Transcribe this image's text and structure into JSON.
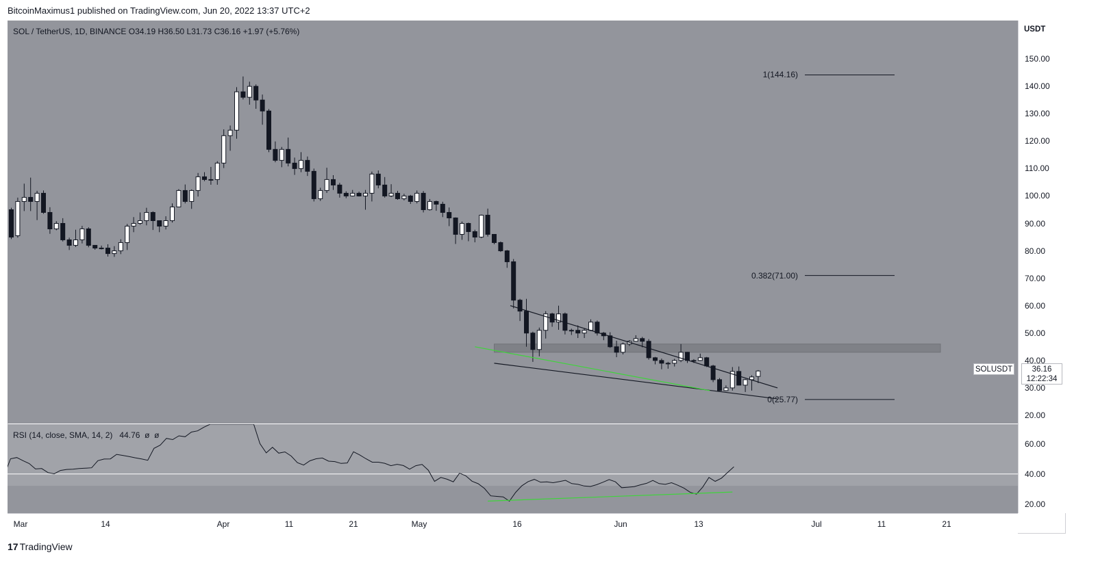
{
  "header": {
    "published_text": "BitcoinMaximus1 published on TradingView.com, Jun 20, 2022 13:37 UTC+2"
  },
  "legend": {
    "symbol": "SOL / TetherUS, 1D, BINANCE",
    "o_label": "O",
    "o_value": "34.19",
    "h_label": "H",
    "h_value": "36.50",
    "l_label": "L",
    "l_value": "31.73",
    "c_label": "C",
    "c_value": "36.16",
    "change": "+1.97 (+5.76%)"
  },
  "rsi_legend": {
    "label": "RSI (14, close, SMA, 14, 2)",
    "value": "44.76",
    "extra1": "ø",
    "extra2": "ø"
  },
  "price_tag": {
    "symbol": "SOLUSDT",
    "price": "36.16",
    "countdown": "12:22:34"
  },
  "fib_levels": [
    {
      "label": "1(144.16)",
      "price": 144.16
    },
    {
      "label": "0.382(71.00)",
      "price": 71.0
    },
    {
      "label": "0(25.77)",
      "price": 25.77
    }
  ],
  "brand": {
    "name": "TradingView",
    "mark": "17"
  },
  "chart_data": [
    {
      "type": "candlestick",
      "title": "SOL / TetherUS, 1D, BINANCE",
      "y_unit": "USDT",
      "ylim": [
        17,
        164
      ],
      "y_ticks": [
        "150.00",
        "140.00",
        "130.00",
        "120.00",
        "110.00",
        "100.00",
        "90.00",
        "80.00",
        "70.00",
        "60.00",
        "50.00",
        "40.00",
        "30.00",
        "20.00"
      ],
      "x_ticks": [
        "Mar",
        "14",
        "Apr",
        "11",
        "21",
        "May",
        "16",
        "Jun",
        "13",
        "Jul",
        "11",
        "21"
      ],
      "candles": [
        [
          95.0,
          85.0,
          95.7,
          84.3
        ],
        [
          85.5,
          98.0,
          99.4,
          84.8
        ],
        [
          98.0,
          99.5,
          104.5,
          94.5
        ],
        [
          99.5,
          98.0,
          106.7,
          94.5
        ],
        [
          98.0,
          101.0,
          101.9,
          91.2
        ],
        [
          101.0,
          94.0,
          102.0,
          93.5
        ],
        [
          94.0,
          88.0,
          95.9,
          86.2
        ],
        [
          88.0,
          90.0,
          90.8,
          87.5
        ],
        [
          90.0,
          84.0,
          91.9,
          83.4
        ],
        [
          84.0,
          82.0,
          84.8,
          80.3
        ],
        [
          82.0,
          84.0,
          87.7,
          81.4
        ],
        [
          84.0,
          88.0,
          89.1,
          82.7
        ],
        [
          88.0,
          82.0,
          88.6,
          81.3
        ],
        [
          82.0,
          81.0,
          82.1,
          80.4
        ],
        [
          81.0,
          81.0,
          81.9,
          80.5
        ],
        [
          81.0,
          79.0,
          82.4,
          77.9
        ],
        [
          79.0,
          80.0,
          81.7,
          77.8
        ],
        [
          80.0,
          83.0,
          84.2,
          78.8
        ],
        [
          83.0,
          89.0,
          89.8,
          80.3
        ],
        [
          89.0,
          90.0,
          92.3,
          86.8
        ],
        [
          90.0,
          91.0,
          94.0,
          89.5
        ],
        [
          91.0,
          94.0,
          95.7,
          89.3
        ],
        [
          94.0,
          91.0,
          94.4,
          87.6
        ],
        [
          91.0,
          89.0,
          91.1,
          86.8
        ],
        [
          89.0,
          91.0,
          92.6,
          87.8
        ],
        [
          91.0,
          96.0,
          97.3,
          90.3
        ],
        [
          96.0,
          102.0,
          102.5,
          95.9
        ],
        [
          102.0,
          98.0,
          104.2,
          97.3
        ],
        [
          98.0,
          102.0,
          102.4,
          95.3
        ],
        [
          102.0,
          107.0,
          108.4,
          99.8
        ],
        [
          107.0,
          106.0,
          108.7,
          105.4
        ],
        [
          106.0,
          106.0,
          110.6,
          104.1
        ],
        [
          106.0,
          112.0,
          112.7,
          104.1
        ],
        [
          112.0,
          122.0,
          124.3,
          110.2
        ],
        [
          122.0,
          124.0,
          125.7,
          116.5
        ],
        [
          124.0,
          138.0,
          139.7,
          120.9
        ],
        [
          138.0,
          136.0,
          143.6,
          135.2
        ],
        [
          136.0,
          140.0,
          141.7,
          133.3
        ],
        [
          140.0,
          135.0,
          140.7,
          131.8
        ],
        [
          135.0,
          131.0,
          137.0,
          126.0
        ],
        [
          131.0,
          117.0,
          131.7,
          116.0
        ],
        [
          117.0,
          113.0,
          119.9,
          112.3
        ],
        [
          113.0,
          117.0,
          117.9,
          110.5
        ],
        [
          117.0,
          112.0,
          121.3,
          110.8
        ],
        [
          112.0,
          110.0,
          114.0,
          107.7
        ],
        [
          110.0,
          113.0,
          116.0,
          108.7
        ],
        [
          113.0,
          109.0,
          114.4,
          107.3
        ],
        [
          109.0,
          99.0,
          110.0,
          98.0
        ],
        [
          99.0,
          102.0,
          103.0,
          98.2
        ],
        [
          102.0,
          106.0,
          110.3,
          101.1
        ],
        [
          106.0,
          104.0,
          107.6,
          102.2
        ],
        [
          104.0,
          101.0,
          104.8,
          99.4
        ],
        [
          101.0,
          100.0,
          101.7,
          99.2
        ],
        [
          100.0,
          101.0,
          102.2,
          99.8
        ],
        [
          101.0,
          100.0,
          101.6,
          99.8
        ],
        [
          100.0,
          101.0,
          102.2,
          95.0
        ],
        [
          101.0,
          108.0,
          108.9,
          98.0
        ],
        [
          108.0,
          104.0,
          109.3,
          102.8
        ],
        [
          104.0,
          100.0,
          106.9,
          99.4
        ],
        [
          100.0,
          101.0,
          104.3,
          99.6
        ],
        [
          101.0,
          99.0,
          101.9,
          98.6
        ],
        [
          99.0,
          100.0,
          100.8,
          98.4
        ],
        [
          100.0,
          98.0,
          100.4,
          97.1
        ],
        [
          98.0,
          101.0,
          102.0,
          97.3
        ],
        [
          101.0,
          95.0,
          101.8,
          94.0
        ],
        [
          95.0,
          98.0,
          98.9,
          94.7
        ],
        [
          98.0,
          97.0,
          98.3,
          94.6
        ],
        [
          97.0,
          94.0,
          97.9,
          92.3
        ],
        [
          94.0,
          92.0,
          95.8,
          89.0
        ],
        [
          92.0,
          86.0,
          92.2,
          82.5
        ],
        [
          86.0,
          90.0,
          90.7,
          84.0
        ],
        [
          90.0,
          87.0,
          90.3,
          83.5
        ],
        [
          87.0,
          85.0,
          87.7,
          83.1
        ],
        [
          85.0,
          93.0,
          93.2,
          84.6
        ],
        [
          93.0,
          86.0,
          95.4,
          85.2
        ],
        [
          86.0,
          83.0,
          86.1,
          82.4
        ],
        [
          83.0,
          80.0,
          83.4,
          79.6
        ],
        [
          80.0,
          76.0,
          80.3,
          73.8
        ],
        [
          76.0,
          62.0,
          77.0,
          59.0
        ],
        [
          62.0,
          58.0,
          62.5,
          54.4
        ],
        [
          58.0,
          50.0,
          62.5,
          45.0
        ],
        [
          50.0,
          44.0,
          50.5,
          39.5
        ],
        [
          44.0,
          51.0,
          52.0,
          41.5
        ],
        [
          51.0,
          57.0,
          58.0,
          48.0
        ],
        [
          57.0,
          54.0,
          57.4,
          52.3
        ],
        [
          54.0,
          57.0,
          60.0,
          51.2
        ],
        [
          57.0,
          51.0,
          57.5,
          49.5
        ],
        [
          51.0,
          51.0,
          51.6,
          49.3
        ],
        [
          51.0,
          50.0,
          52.8,
          48.2
        ],
        [
          50.0,
          51.0,
          51.8,
          48.2
        ],
        [
          51.0,
          54.0,
          55.0,
          50.7
        ],
        [
          54.0,
          50.0,
          54.6,
          49.1
        ],
        [
          50.0,
          49.0,
          50.4,
          47.4
        ],
        [
          49.0,
          45.0,
          50.3,
          44.6
        ],
        [
          45.0,
          43.0,
          47.2,
          41.2
        ],
        [
          43.0,
          46.0,
          46.5,
          42.2
        ],
        [
          46.0,
          47.0,
          47.4,
          45.3
        ],
        [
          47.0,
          48.0,
          49.2,
          46.9
        ],
        [
          48.0,
          47.0,
          48.6,
          44.8
        ],
        [
          47.0,
          41.0,
          47.8,
          40.3
        ],
        [
          41.0,
          40.0,
          41.3,
          38.6
        ],
        [
          40.0,
          39.0,
          40.7,
          36.8
        ],
        [
          39.0,
          39.0,
          39.5,
          37.0
        ],
        [
          39.0,
          40.0,
          40.6,
          37.8
        ],
        [
          40.0,
          43.0,
          46.0,
          39.4
        ],
        [
          43.0,
          40.0,
          43.1,
          39.1
        ],
        [
          40.0,
          40.0,
          40.5,
          39.1
        ],
        [
          40.0,
          41.0,
          42.5,
          39.8
        ],
        [
          41.0,
          38.0,
          41.3,
          37.6
        ],
        [
          38.0,
          33.0,
          38.4,
          32.1
        ],
        [
          33.0,
          29.0,
          33.6,
          28.9
        ],
        [
          29.0,
          30.0,
          30.9,
          28.8
        ],
        [
          30.0,
          36.0,
          37.6,
          29.0
        ],
        [
          36.0,
          31.0,
          37.8,
          30.9
        ],
        [
          31.0,
          33.0,
          33.3,
          28.5
        ],
        [
          33.0,
          34.0,
          34.6,
          29.0
        ],
        [
          34.19,
          36.16,
          36.5,
          31.73
        ]
      ],
      "rsi": {
        "label": "RSI (14, close, SMA, 14, 2)",
        "ylim": [
          14,
          73
        ],
        "y_ticks": [
          "60.00",
          "40.00",
          "20.00"
        ],
        "values": [
          39.3,
          50.1,
          50.9,
          48.8,
          46.9,
          43.3,
          43.6,
          40.9,
          40.1,
          42.3,
          43.0,
          43.2,
          43.6,
          43.8,
          44.1,
          48.8,
          49.9,
          50.0,
          53.0,
          52.3,
          51.6,
          50.7,
          50.0,
          49.1,
          57.0,
          59.1,
          63.6,
          62.8,
          65.3,
          64.7,
          67.8,
          68.6,
          71.0,
          73.0,
          73.0,
          73.0,
          73.0,
          73.0,
          73.0,
          73.0,
          73.0,
          60.1,
          54.0,
          57.7,
          53.8,
          54.6,
          51.9,
          47.5,
          45.9,
          48.7,
          50.1,
          50.6,
          48.5,
          48.2,
          47.0,
          47.3,
          54.7,
          52.6,
          50.1,
          47.8,
          47.8,
          47.1,
          45.5,
          46.4,
          45.6,
          43.2,
          45.5,
          46.3,
          42.5,
          35.1,
          37.7,
          36.5,
          34.8,
          40.5,
          38.8,
          35.2,
          33.5,
          30.4,
          25.5,
          25.1,
          24.8,
          22.0,
          27.8,
          32.2,
          34.9,
          36.4,
          34.5,
          34.8,
          34.2,
          34.9,
          35.8,
          33.6,
          33.1,
          32.0,
          31.7,
          32.9,
          34.5,
          36.3,
          34.8,
          30.9,
          31.2,
          31.6,
          32.8,
          33.8,
          35.7,
          33.6,
          33.1,
          34.2,
          32.5,
          30.6,
          27.8,
          26.6,
          31.3,
          37.7,
          35.1,
          37.2,
          41.0,
          44.76
        ]
      },
      "annotations": {
        "resistance_zone": [
          43.0,
          46.0
        ],
        "wedge_upper": [
          [
            60.0,
            13
          ],
          [
            30.0,
            129
          ]
        ],
        "wedge_lower": [
          [
            39.0,
            13
          ],
          [
            26.0,
            129
          ]
        ],
        "green_support_price": [
          [
            45.0,
            10
          ],
          [
            29.0,
            118
          ]
        ],
        "rsi_rising_support": [
          [
            22.0,
            14
          ],
          [
            28.0,
            120
          ]
        ],
        "rsi_midline": 40,
        "rsi_oversold": 30
      }
    }
  ]
}
